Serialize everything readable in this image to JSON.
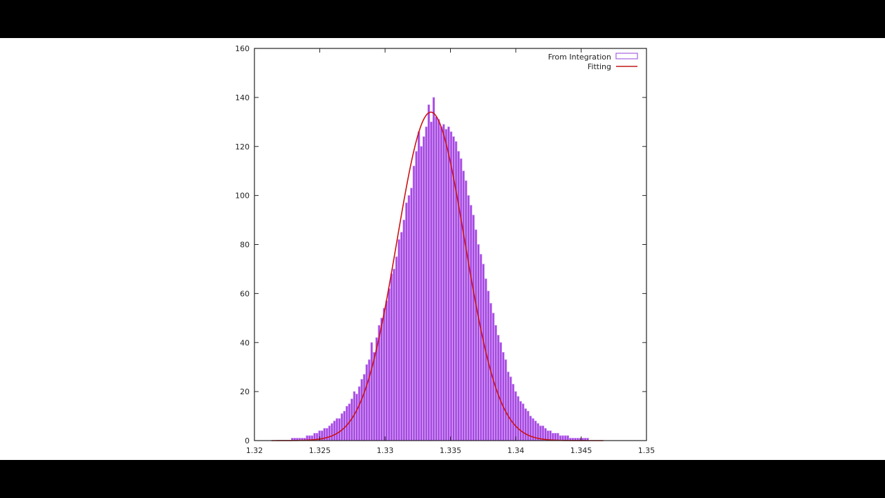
{
  "chart_data": {
    "type": "bar",
    "title": "",
    "xlabel": "",
    "ylabel": "",
    "xlim": [
      1.32,
      1.35
    ],
    "ylim": [
      0,
      160
    ],
    "grid": false,
    "legend_position": "top-right inside",
    "x_ticks": [
      "1.32",
      "1.325",
      "1.33",
      "1.335",
      "1.34",
      "1.345",
      "1.35"
    ],
    "y_ticks": [
      "0",
      "20",
      "40",
      "60",
      "80",
      "100",
      "120",
      "140",
      "160"
    ],
    "series": [
      {
        "name": "From Integration",
        "kind": "histogram",
        "bin_start": 1.3213,
        "bin_width": 0.00019,
        "values": [
          0,
          0,
          0,
          0,
          0,
          0,
          0,
          0,
          1,
          1,
          1,
          1,
          1,
          1,
          2,
          2,
          2,
          3,
          3,
          4,
          4,
          5,
          5,
          6,
          7,
          8,
          9,
          9,
          11,
          12,
          14,
          15,
          17,
          20,
          19,
          22,
          25,
          27,
          31,
          33,
          40,
          36,
          42,
          47,
          50,
          54,
          57,
          62,
          68,
          70,
          75,
          82,
          85,
          90,
          97,
          100,
          103,
          112,
          118,
          126,
          120,
          124,
          128,
          137,
          130,
          140,
          132,
          131,
          128,
          129,
          127,
          128,
          126,
          124,
          122,
          118,
          115,
          110,
          106,
          100,
          96,
          92,
          86,
          80,
          76,
          72,
          66,
          61,
          56,
          52,
          47,
          43,
          40,
          36,
          33,
          28,
          26,
          23,
          20,
          18,
          16,
          15,
          13,
          12,
          10,
          9,
          8,
          7,
          6,
          6,
          5,
          4,
          4,
          3,
          3,
          3,
          2,
          2,
          2,
          2,
          1,
          1,
          1,
          1,
          1,
          1,
          1,
          1,
          0,
          0,
          0,
          0,
          0,
          0,
          0
        ],
        "fill_color": "#a43fe0",
        "edge_color": "#c58cf0"
      },
      {
        "name": "Fitting",
        "kind": "gaussian-line",
        "amplitude": 134,
        "mean": 1.3335,
        "sigma": 0.0026,
        "x_range": [
          1.3213,
          1.3467
        ],
        "color": "#cc1111"
      }
    ]
  },
  "legend": {
    "items": [
      {
        "label": "From Integration",
        "swatch": "box-outline",
        "color": "#a860e0"
      },
      {
        "label": "Fitting",
        "swatch": "line",
        "color": "#c01818"
      }
    ]
  }
}
